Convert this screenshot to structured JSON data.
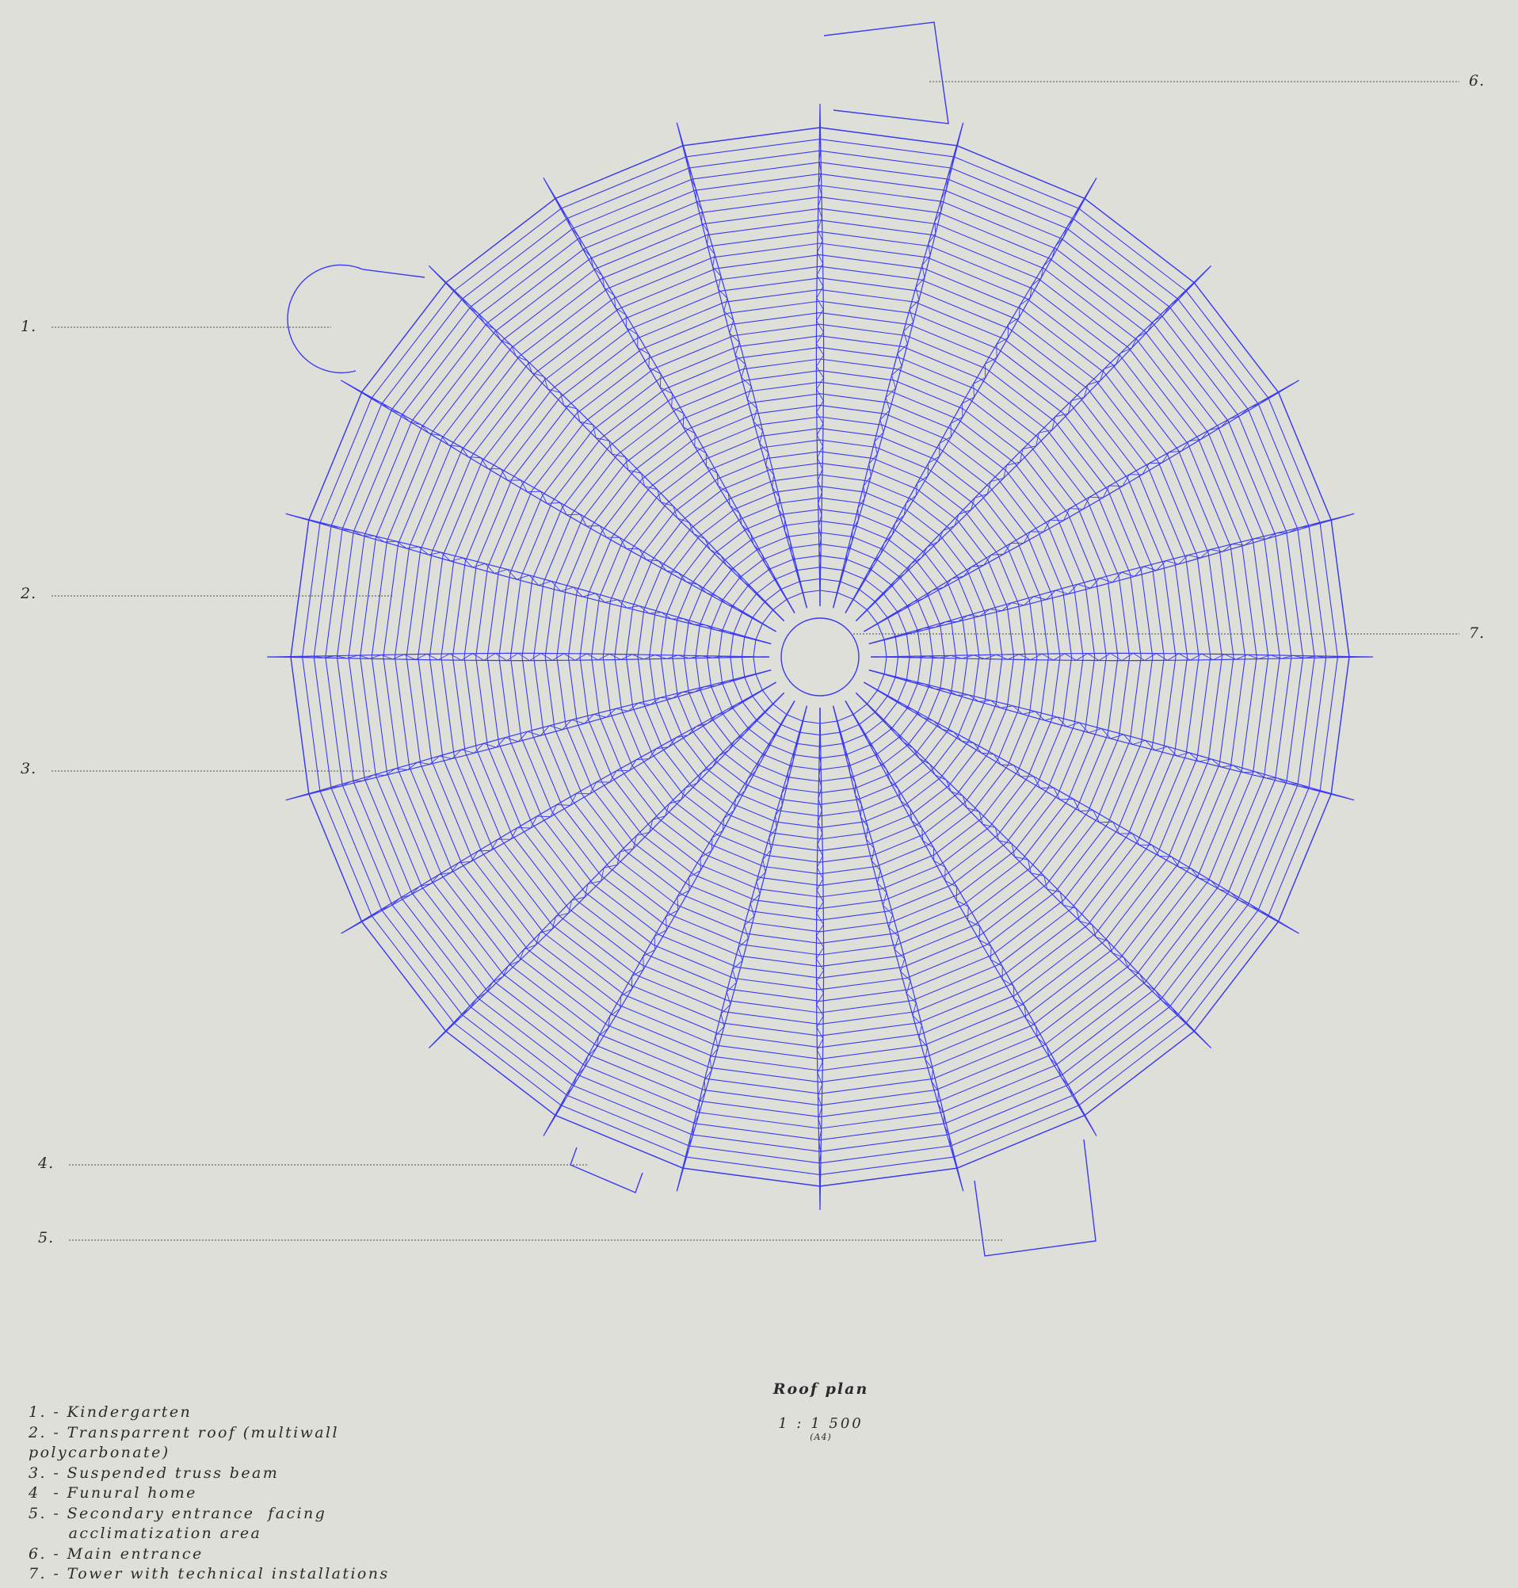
{
  "drawing": {
    "title": "Roof plan",
    "scale": "1 : 1 500",
    "format": "(A4)",
    "line_color": "#3a3af0",
    "leader_color": "#4a4a4a",
    "background": "#dfdfda",
    "trusses": 24,
    "purlins_per_bay": 40
  },
  "callouts": [
    "1.",
    "2.",
    "3.",
    "4.",
    "5.",
    "6.",
    "7."
  ],
  "legend": [
    "1. - Kindergarten",
    "2. - Transparrent roof (multiwall",
    "polycarbonate)",
    "3. - Suspended truss beam",
    "4  - Funural home",
    "5. - Secondary entrance  facing",
    "      acclimatization area",
    "6. - Main entrance",
    "7. - Tower with technical installations"
  ]
}
